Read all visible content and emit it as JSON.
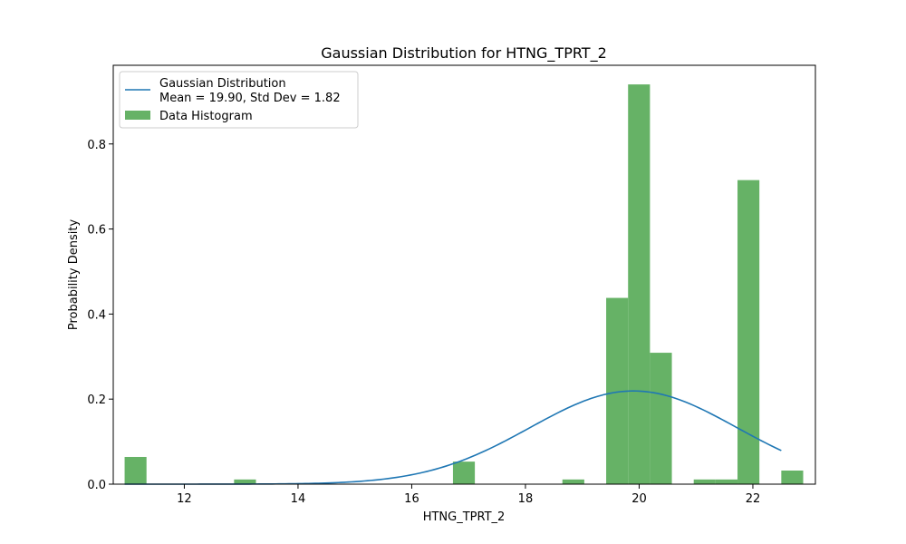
{
  "chart_data": {
    "type": "bar",
    "title": "Gaussian Distribution for HTNG_TPRT_2",
    "xlabel": "HTNG_TPRT_2",
    "ylabel": "Probability Density",
    "xlim": [
      10.75,
      23.1
    ],
    "ylim": [
      0,
      0.985
    ],
    "xticks": [
      12,
      14,
      16,
      18,
      20,
      22
    ],
    "yticks": [
      0.0,
      0.2,
      0.4,
      0.6,
      0.8
    ],
    "ytick_labels": [
      "0.0",
      "0.2",
      "0.4",
      "0.6",
      "0.8"
    ],
    "grid": false,
    "legend_position": "upper-left",
    "histogram": {
      "name": "Data Histogram",
      "color": "#66b266",
      "bin_start": 10.95,
      "bin_width": 0.385,
      "values": [
        0.064,
        0,
        0,
        0,
        0,
        0.011,
        0,
        0,
        0,
        0,
        0,
        0,
        0,
        0,
        0,
        0.053,
        0,
        0,
        0,
        0,
        0.011,
        0,
        0.438,
        0.94,
        0.309,
        0,
        0.011,
        0.011,
        0.715,
        0,
        0.032
      ]
    },
    "gaussian": {
      "name": "Gaussian Distribution\nMean = 19.90, Std Dev = 1.82",
      "legend_line1": "Gaussian Distribution",
      "legend_line2": "Mean = 19.90, Std Dev = 1.82",
      "color": "#1f77b4",
      "mean": 19.9,
      "std": 1.82,
      "x_range": [
        10.95,
        22.5
      ]
    }
  }
}
